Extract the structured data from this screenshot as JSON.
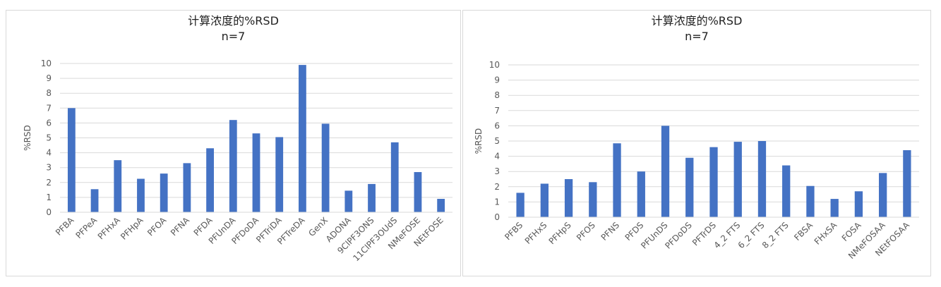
{
  "colors": {
    "bar": "#4472c4",
    "grid": "#d9d9d9",
    "axis_text": "#595959",
    "title_text": "#222222"
  },
  "chart_data": [
    {
      "type": "bar",
      "title": "计算浓度的%RSD",
      "subtitle": "n=7",
      "ylabel": "%RSD",
      "xlabel": "",
      "ylim": [
        0,
        10
      ],
      "yticks": [
        0,
        1,
        2,
        3,
        4,
        5,
        6,
        7,
        8,
        9,
        10
      ],
      "grid": true,
      "categories": [
        "PFBA",
        "PFPeA",
        "PFHxA",
        "PFHpA",
        "PFOA",
        "PFNA",
        "PFDA",
        "PFUnDA",
        "PFDoDA",
        "PFTriDA",
        "PFTreDA",
        "GenX",
        "ADONA",
        "9ClPF3ONS",
        "11ClPF3OUdS",
        "NMeFOSE",
        "NEtFOSE"
      ],
      "values": [
        7.0,
        1.55,
        3.5,
        2.25,
        2.6,
        3.3,
        4.3,
        6.2,
        5.3,
        5.05,
        9.9,
        5.95,
        1.45,
        1.9,
        4.7,
        2.7,
        0.9
      ]
    },
    {
      "type": "bar",
      "title": "计算浓度的%RSD",
      "subtitle": "n=7",
      "ylabel": "%RSD",
      "xlabel": "",
      "ylim": [
        0,
        10
      ],
      "yticks": [
        0,
        1,
        2,
        3,
        4,
        5,
        6,
        7,
        8,
        9,
        10
      ],
      "grid": true,
      "categories": [
        "PFBS",
        "PFHxS",
        "PFHpS",
        "PFOS",
        "PFNS",
        "PFDS",
        "PFUnDS",
        "PFDoDS",
        "PFTrDS",
        "4_2 FTS",
        "6_2 FTS",
        "8_2 FTS",
        "FBSA",
        "FHxSA",
        "FOSA",
        "NMeFOSAA",
        "NEtFOSAA"
      ],
      "values": [
        1.6,
        2.2,
        2.5,
        2.3,
        4.85,
        3.0,
        6.0,
        3.9,
        4.6,
        4.95,
        5.0,
        3.4,
        2.05,
        1.2,
        1.7,
        2.9,
        4.4
      ]
    }
  ]
}
